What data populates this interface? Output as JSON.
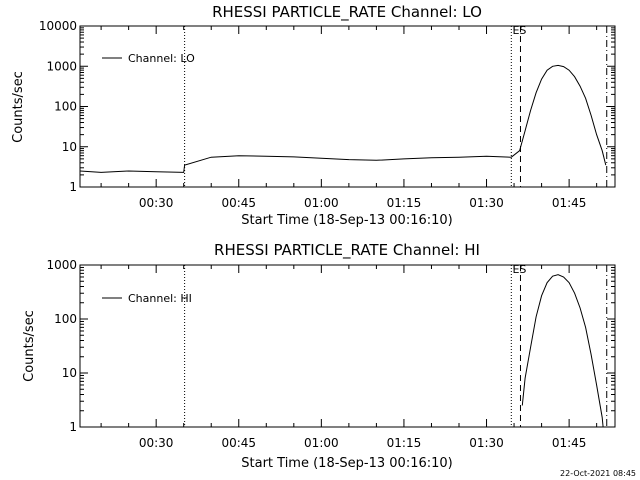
{
  "footer": {
    "date": "22-Oct-2021 08:45"
  },
  "chart_data": [
    {
      "type": "line",
      "title": "RHESSI PARTICLE_RATE Channel: LO",
      "xlabel": "Start Time (18-Sep-13 00:16:10)",
      "ylabel": "Counts/sec",
      "yscale": "log",
      "ylim": [
        1,
        10000
      ],
      "yticks": [
        "1",
        "10",
        "100",
        "1000",
        "10000"
      ],
      "xlim": [
        "00:16:10",
        "01:53:20"
      ],
      "xticks": [
        "00:30",
        "00:45",
        "01:00",
        "01:15",
        "01:30",
        "01:45"
      ],
      "legend": {
        "placement": "top-left",
        "entries": [
          "Channel: LO"
        ]
      },
      "markers": [
        {
          "label": "",
          "time": "00:35:10",
          "style": "dotted"
        },
        {
          "label": "",
          "time": "01:34:30",
          "style": "dotted"
        },
        {
          "label": "ES",
          "time": "01:36:10",
          "style": "dashed"
        },
        {
          "label": "",
          "time": "01:51:50",
          "style": "dash-dot"
        }
      ],
      "series": [
        {
          "name": "Channel: LO",
          "x": [
            "00:16:10",
            "00:20:00",
            "00:25:00",
            "00:30:00",
            "00:35:00",
            "00:35:10",
            "00:40:00",
            "00:45:00",
            "00:50:00",
            "00:55:00",
            "01:00:00",
            "01:05:00",
            "01:10:00",
            "01:15:00",
            "01:20:00",
            "01:25:00",
            "01:30:00",
            "01:34:30",
            "01:36:00",
            "01:37:00",
            "01:38:00",
            "01:39:00",
            "01:40:00",
            "01:41:00",
            "01:42:00",
            "01:43:00",
            "01:44:00",
            "01:45:00",
            "01:46:00",
            "01:47:00",
            "01:48:00",
            "01:49:00",
            "01:50:00",
            "01:51:00",
            "01:51:40"
          ],
          "values": [
            2.5,
            2.3,
            2.5,
            2.4,
            2.3,
            3.5,
            5.5,
            6,
            5.8,
            5.6,
            5.2,
            4.8,
            4.6,
            5,
            5.3,
            5.5,
            5.8,
            5.5,
            8,
            25,
            80,
            220,
            480,
            800,
            1000,
            1050,
            980,
            800,
            550,
            320,
            160,
            60,
            20,
            8,
            3.5
          ]
        }
      ]
    },
    {
      "type": "line",
      "title": "RHESSI PARTICLE_RATE Channel: HI",
      "xlabel": "Start Time (18-Sep-13 00:16:10)",
      "ylabel": "Counts/sec",
      "yscale": "log",
      "ylim": [
        1,
        1000
      ],
      "yticks": [
        "1",
        "10",
        "100",
        "1000"
      ],
      "xlim": [
        "00:16:10",
        "01:53:20"
      ],
      "xticks": [
        "00:30",
        "00:45",
        "01:00",
        "01:15",
        "01:30",
        "01:45"
      ],
      "legend": {
        "placement": "top-left",
        "entries": [
          "Channel: HI"
        ]
      },
      "markers": [
        {
          "label": "",
          "time": "00:35:10",
          "style": "dotted"
        },
        {
          "label": "",
          "time": "01:34:30",
          "style": "dotted"
        },
        {
          "label": "ES",
          "time": "01:36:10",
          "style": "dashed"
        },
        {
          "label": "",
          "time": "01:51:50",
          "style": "dash-dot"
        }
      ],
      "series": [
        {
          "name": "Channel: HI",
          "x": [
            "01:36:30",
            "01:37:00",
            "01:38:00",
            "01:39:00",
            "01:40:00",
            "01:41:00",
            "01:42:00",
            "01:43:00",
            "01:44:00",
            "01:45:00",
            "01:46:00",
            "01:47:00",
            "01:48:00",
            "01:49:00",
            "01:50:00",
            "01:51:00",
            "01:51:10"
          ],
          "values": [
            2.5,
            8,
            30,
            110,
            270,
            470,
            620,
            660,
            600,
            470,
            300,
            160,
            70,
            22,
            6,
            1.5,
            1
          ]
        }
      ]
    }
  ]
}
